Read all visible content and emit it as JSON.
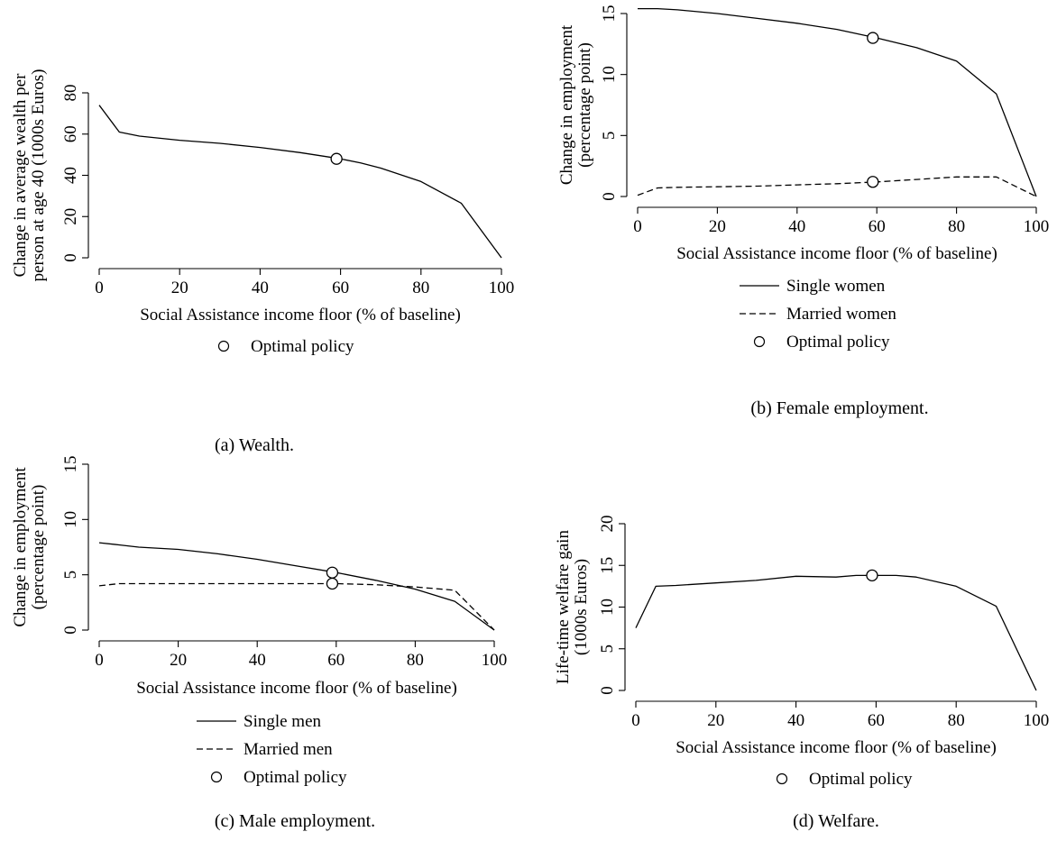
{
  "chart_data": [
    {
      "type": "line",
      "caption": "(a) Wealth.",
      "xlabel": "Social Assistance income floor (% of baseline)",
      "ylabel": [
        "Change in average wealth per",
        "person at age 40 (1000s Euros)"
      ],
      "xlim": [
        0,
        100
      ],
      "ylim": [
        0,
        80
      ],
      "xticks": [
        0,
        20,
        40,
        60,
        80,
        100
      ],
      "yticks": [
        0,
        20,
        40,
        60,
        80
      ],
      "grid": false,
      "series": [
        {
          "style": "solid",
          "x": [
            0,
            5,
            10,
            20,
            30,
            40,
            50,
            60,
            65,
            70,
            80,
            90,
            100
          ],
          "y": [
            74,
            61,
            59,
            57,
            55.5,
            53.5,
            51,
            48,
            46,
            43.5,
            37,
            26.5,
            0
          ]
        }
      ],
      "optimal": [
        {
          "x": 59,
          "y": 48
        }
      ],
      "legend": [
        {
          "marker": "circle",
          "label": "Optimal policy"
        }
      ],
      "legend_placement": "bottom"
    },
    {
      "type": "line",
      "caption": "(b) Female employment.",
      "xlabel": "Social Assistance income floor (% of baseline)",
      "ylabel": [
        "Change in employment",
        "(percentage point)"
      ],
      "xlim": [
        0,
        100
      ],
      "ylim": [
        0,
        15
      ],
      "xticks": [
        0,
        20,
        40,
        60,
        80,
        100
      ],
      "yticks": [
        0,
        5,
        10,
        15
      ],
      "grid": false,
      "series": [
        {
          "name": "Single women",
          "style": "solid",
          "x": [
            0,
            5,
            10,
            20,
            30,
            40,
            50,
            60,
            70,
            80,
            90,
            100
          ],
          "y": [
            15.4,
            15.4,
            15.3,
            15.0,
            14.6,
            14.2,
            13.7,
            13.0,
            12.2,
            11.1,
            8.4,
            0
          ]
        },
        {
          "name": "Married women",
          "style": "dashed",
          "x": [
            0,
            5,
            10,
            20,
            30,
            40,
            50,
            60,
            70,
            80,
            90,
            100
          ],
          "y": [
            0.1,
            0.7,
            0.75,
            0.8,
            0.85,
            0.95,
            1.05,
            1.2,
            1.4,
            1.6,
            1.6,
            0
          ]
        }
      ],
      "optimal": [
        {
          "x": 59,
          "y": 13.0
        },
        {
          "x": 59,
          "y": 1.2
        }
      ],
      "legend": [
        {
          "marker": "solid",
          "label": "Single women"
        },
        {
          "marker": "dashed",
          "label": "Married women"
        },
        {
          "marker": "circle",
          "label": "Optimal policy"
        }
      ],
      "legend_placement": "bottom"
    },
    {
      "type": "line",
      "caption": "(c) Male employment.",
      "xlabel": "Social Assistance income floor (% of baseline)",
      "ylabel": [
        "Change in employment",
        "(percentage point)"
      ],
      "xlim": [
        0,
        100
      ],
      "ylim": [
        0,
        15
      ],
      "xticks": [
        0,
        20,
        40,
        60,
        80,
        100
      ],
      "yticks": [
        0,
        5,
        10,
        15
      ],
      "grid": false,
      "series": [
        {
          "name": "Single men",
          "style": "solid",
          "x": [
            0,
            5,
            10,
            20,
            30,
            40,
            50,
            60,
            70,
            80,
            90,
            100
          ],
          "y": [
            7.9,
            7.7,
            7.5,
            7.3,
            6.9,
            6.4,
            5.8,
            5.2,
            4.5,
            3.7,
            2.6,
            0
          ]
        },
        {
          "name": "Married men",
          "style": "dashed",
          "x": [
            0,
            5,
            10,
            20,
            30,
            40,
            50,
            60,
            70,
            80,
            90,
            100
          ],
          "y": [
            4.0,
            4.2,
            4.2,
            4.2,
            4.2,
            4.2,
            4.2,
            4.2,
            4.1,
            3.9,
            3.6,
            0
          ]
        }
      ],
      "optimal": [
        {
          "x": 59,
          "y": 5.2
        },
        {
          "x": 59,
          "y": 4.2
        }
      ],
      "legend": [
        {
          "marker": "solid",
          "label": "Single men"
        },
        {
          "marker": "dashed",
          "label": "Married men"
        },
        {
          "marker": "circle",
          "label": "Optimal policy"
        }
      ],
      "legend_placement": "bottom"
    },
    {
      "type": "line",
      "caption": "(d) Welfare.",
      "xlabel": "Social Assistance income floor (% of baseline)",
      "ylabel": [
        "Life-time welfare gain",
        "(1000s Euros)"
      ],
      "xlim": [
        0,
        100
      ],
      "ylim": [
        0,
        20
      ],
      "xticks": [
        0,
        20,
        40,
        60,
        80,
        100
      ],
      "yticks": [
        0,
        5,
        10,
        15,
        20
      ],
      "grid": false,
      "series": [
        {
          "style": "solid",
          "x": [
            0,
            5,
            10,
            20,
            30,
            40,
            50,
            55,
            60,
            65,
            70,
            80,
            90,
            100
          ],
          "y": [
            7.5,
            12.5,
            12.6,
            12.9,
            13.2,
            13.7,
            13.6,
            13.8,
            13.8,
            13.8,
            13.6,
            12.5,
            10.1,
            0
          ]
        }
      ],
      "optimal": [
        {
          "x": 59,
          "y": 13.8
        }
      ],
      "legend": [
        {
          "marker": "circle",
          "label": "Optimal policy"
        }
      ],
      "legend_placement": "bottom"
    }
  ]
}
